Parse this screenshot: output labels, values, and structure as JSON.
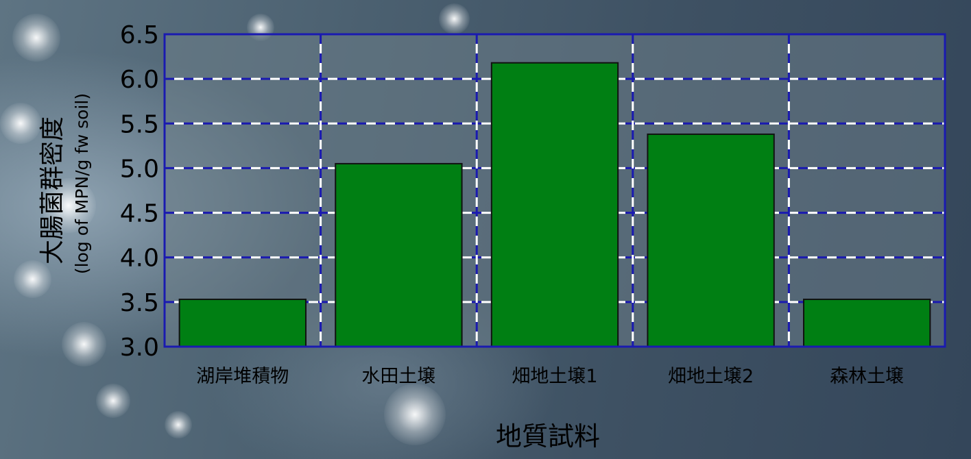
{
  "chart_data": {
    "type": "bar",
    "categories": [
      "湖岸堆積物",
      "水田土壌",
      "畑地土壌1",
      "畑地土壌2",
      "森林土壌"
    ],
    "values": [
      3.53,
      5.05,
      6.18,
      5.38,
      3.53
    ],
    "xlabel": "地質試料",
    "ylabel": "大腸菌群密度",
    "ylabel_sub": "(log of MPN/g fw soil)",
    "ylim": [
      3.0,
      6.5
    ],
    "yticks": [
      "3.0",
      "3.5",
      "4.0",
      "4.5",
      "5.0",
      "5.5",
      "6.0",
      "6.5"
    ],
    "grid": true,
    "colors": {
      "bar_fill": "#007f13",
      "bar_stroke": "#111111",
      "plot_background": "#6b7d89",
      "plot_frame": "#1a1ab0",
      "grid_dash_white": "#ffffff",
      "grid_dash_blue": "#1a1ab0"
    }
  }
}
